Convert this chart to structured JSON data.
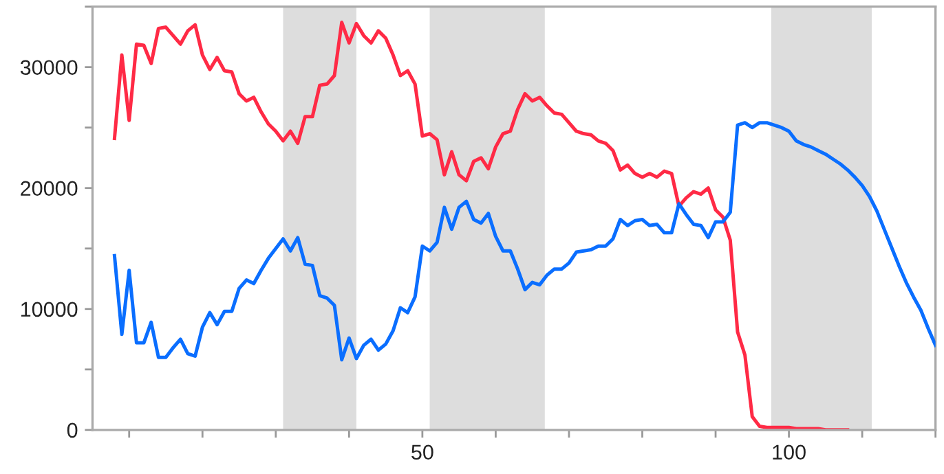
{
  "chart_data": {
    "type": "line",
    "xlim": [
      5,
      120
    ],
    "ylim": [
      0,
      35000
    ],
    "xticks": [
      {
        "value": 10,
        "label": null
      },
      {
        "value": 20,
        "label": null
      },
      {
        "value": 30,
        "label": null
      },
      {
        "value": 40,
        "label": null
      },
      50,
      {
        "value": 60,
        "label": null
      },
      {
        "value": 70,
        "label": null
      },
      {
        "value": 80,
        "label": null
      },
      {
        "value": 90,
        "label": null
      },
      100,
      {
        "value": 110,
        "label": null
      },
      {
        "value": 120,
        "label": null
      }
    ],
    "yticks": [
      0,
      {
        "value": 5000,
        "label": null
      },
      10000,
      {
        "value": 15000,
        "label": null
      },
      20000,
      {
        "value": 25000,
        "label": null
      },
      30000,
      {
        "value": 35000,
        "label": null
      }
    ],
    "grid": false,
    "marker": "none",
    "line_style": "solid",
    "bands": [
      {
        "axis": "x",
        "from": 31,
        "to": 41,
        "color": "#dddddd"
      },
      {
        "axis": "x",
        "from": 51,
        "to": 66.7,
        "color": "#dddddd"
      },
      {
        "axis": "x",
        "from": 97.6,
        "to": 111.3,
        "color": "#dddddd"
      }
    ],
    "series": [
      {
        "color": "#ff2a45",
        "x": [
          8,
          9,
          10,
          11,
          12,
          13,
          14,
          15,
          16,
          17,
          18,
          19,
          20,
          21,
          22,
          23,
          24,
          25,
          26,
          27,
          28,
          29,
          30,
          31,
          32,
          33,
          34,
          35,
          36,
          37,
          38,
          39,
          40,
          41,
          42,
          43,
          44,
          45,
          46,
          47,
          48,
          49,
          50,
          51,
          52,
          53,
          54,
          55,
          56,
          57,
          58,
          59,
          60,
          61,
          62,
          63,
          64,
          65,
          66,
          67,
          68,
          69,
          70,
          71,
          72,
          73,
          74,
          75,
          76,
          77,
          78,
          79,
          80,
          81,
          82,
          83,
          84,
          85,
          86,
          87,
          88,
          89,
          90,
          91,
          92,
          93,
          94,
          95,
          96,
          97,
          98,
          99,
          100,
          101,
          102,
          103,
          104,
          105,
          106,
          107,
          108
        ],
        "values": [
          24100,
          31000,
          25600,
          31900,
          31800,
          30300,
          33200,
          33300,
          32600,
          31900,
          33000,
          33500,
          31000,
          29800,
          30800,
          29700,
          29600,
          27800,
          27200,
          27500,
          26300,
          25300,
          24700,
          23900,
          24700,
          23700,
          25900,
          25900,
          28500,
          28600,
          29300,
          33700,
          32000,
          33600,
          32600,
          32000,
          33000,
          32400,
          31000,
          29300,
          29700,
          28600,
          24300,
          24500,
          24000,
          21100,
          23000,
          21100,
          20600,
          22200,
          22500,
          21600,
          23400,
          24500,
          24700,
          26500,
          27800,
          27200,
          27500,
          26800,
          26200,
          26100,
          25400,
          24700,
          24500,
          24400,
          23900,
          23700,
          23100,
          21500,
          21900,
          21200,
          20900,
          21200,
          20900,
          21400,
          21200,
          18500,
          19200,
          19700,
          19500,
          20000,
          18200,
          17600,
          15700,
          8100,
          6200,
          1100,
          300,
          200,
          200,
          200,
          200,
          100,
          100,
          100,
          100,
          0,
          0,
          0,
          0
        ]
      },
      {
        "color": "#0a6eff",
        "x": [
          8,
          9,
          10,
          11,
          12,
          13,
          14,
          15,
          16,
          17,
          18,
          19,
          20,
          21,
          22,
          23,
          24,
          25,
          26,
          27,
          28,
          29,
          30,
          31,
          32,
          33,
          34,
          35,
          36,
          37,
          38,
          39,
          40,
          41,
          42,
          43,
          44,
          45,
          46,
          47,
          48,
          49,
          50,
          51,
          52,
          53,
          54,
          55,
          56,
          57,
          58,
          59,
          60,
          61,
          62,
          63,
          64,
          65,
          66,
          67,
          68,
          69,
          70,
          71,
          72,
          73,
          74,
          75,
          76,
          77,
          78,
          79,
          80,
          81,
          82,
          83,
          84,
          85,
          86,
          87,
          88,
          89,
          90,
          91,
          92,
          93,
          94,
          95,
          96,
          97,
          98,
          99,
          100,
          101,
          102,
          103,
          104,
          105,
          106,
          107,
          108,
          109,
          110,
          111,
          112,
          113,
          114,
          115,
          116,
          117,
          118,
          119,
          120
        ],
        "values": [
          14400,
          7900,
          13200,
          7200,
          7200,
          8900,
          6000,
          6000,
          6800,
          7500,
          6300,
          6100,
          8500,
          9700,
          8700,
          9800,
          9800,
          11700,
          12400,
          12100,
          13200,
          14200,
          15000,
          15800,
          14800,
          15900,
          13700,
          13600,
          11100,
          10900,
          10300,
          5800,
          7600,
          5900,
          7000,
          7500,
          6600,
          7100,
          8200,
          10100,
          9700,
          11000,
          15200,
          14800,
          15500,
          18400,
          16600,
          18400,
          18900,
          17400,
          17100,
          17900,
          16000,
          14800,
          14800,
          13300,
          11600,
          12200,
          12000,
          12800,
          13300,
          13300,
          13800,
          14700,
          14800,
          14900,
          15200,
          15200,
          15800,
          17400,
          16900,
          17300,
          17400,
          16900,
          17000,
          16300,
          16300,
          18700,
          17800,
          17000,
          16900,
          15900,
          17200,
          17200,
          18000,
          25200,
          25400,
          25000,
          25400,
          25400,
          25200,
          25000,
          24700,
          23900,
          23600,
          23400,
          23100,
          22800,
          22400,
          22000,
          21500,
          20900,
          20200,
          19300,
          18100,
          16600,
          15100,
          13600,
          12200,
          11000,
          9900,
          8400,
          7000
        ]
      }
    ]
  }
}
